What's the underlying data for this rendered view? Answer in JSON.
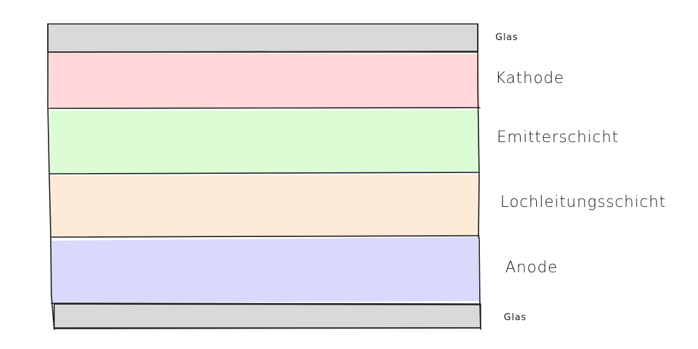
{
  "layers": [
    {
      "id": "glas-top",
      "label": "Glas",
      "color": "#d9d9d9"
    },
    {
      "id": "kathode",
      "label": "Kathode",
      "color": "#ffd9d9"
    },
    {
      "id": "emitter",
      "label": "Emitterschicht",
      "color": "#dcfcd6"
    },
    {
      "id": "loch",
      "label": "Lochleitungsschicht",
      "color": "#fdebd7"
    },
    {
      "id": "anode",
      "label": "Anode",
      "color": "#d9d9fb"
    },
    {
      "id": "glas-bottom",
      "label": "Glas",
      "color": "#d9d9d9"
    }
  ]
}
